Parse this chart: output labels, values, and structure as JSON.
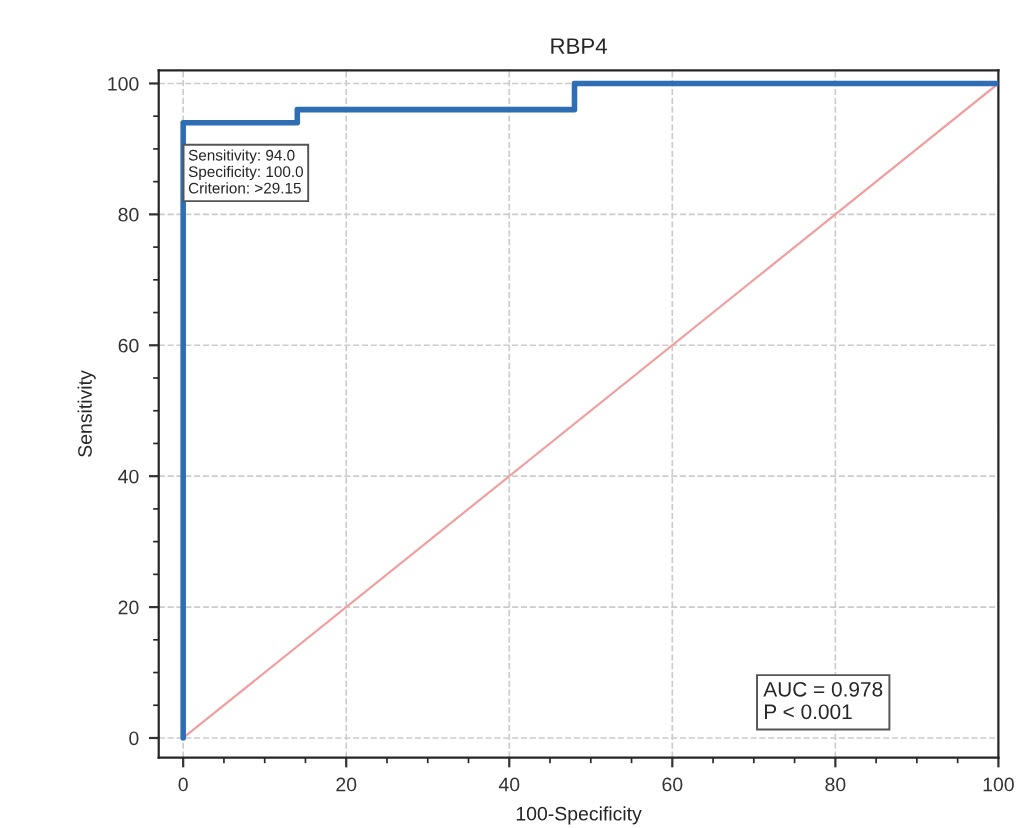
{
  "chart_data": {
    "type": "line",
    "title": "RBP4",
    "xlabel": "100-Specificity",
    "ylabel": "Sensitivity",
    "series": [
      {
        "type": "step",
        "color": "#2f6db5",
        "x": [
          0,
          0,
          14,
          14,
          48,
          48,
          100
        ],
        "values": [
          0,
          94,
          94,
          96,
          96,
          100,
          100
        ]
      },
      {
        "color": "#f0a0a0",
        "x": [
          0,
          100
        ],
        "values": [
          0,
          100
        ]
      }
    ],
    "xlim": [
      -3,
      100
    ],
    "ylim": [
      -3,
      102
    ],
    "xticks": [
      0,
      20,
      40,
      60,
      80,
      100
    ],
    "yticks": [
      0,
      20,
      40,
      60,
      80,
      100
    ],
    "grid": true,
    "annotations": [
      "Sensitivity: 94.0\nSpecificity: 100.0\nCriterion: >29.15",
      "AUC = 0.978\nP < 0.001"
    ]
  }
}
